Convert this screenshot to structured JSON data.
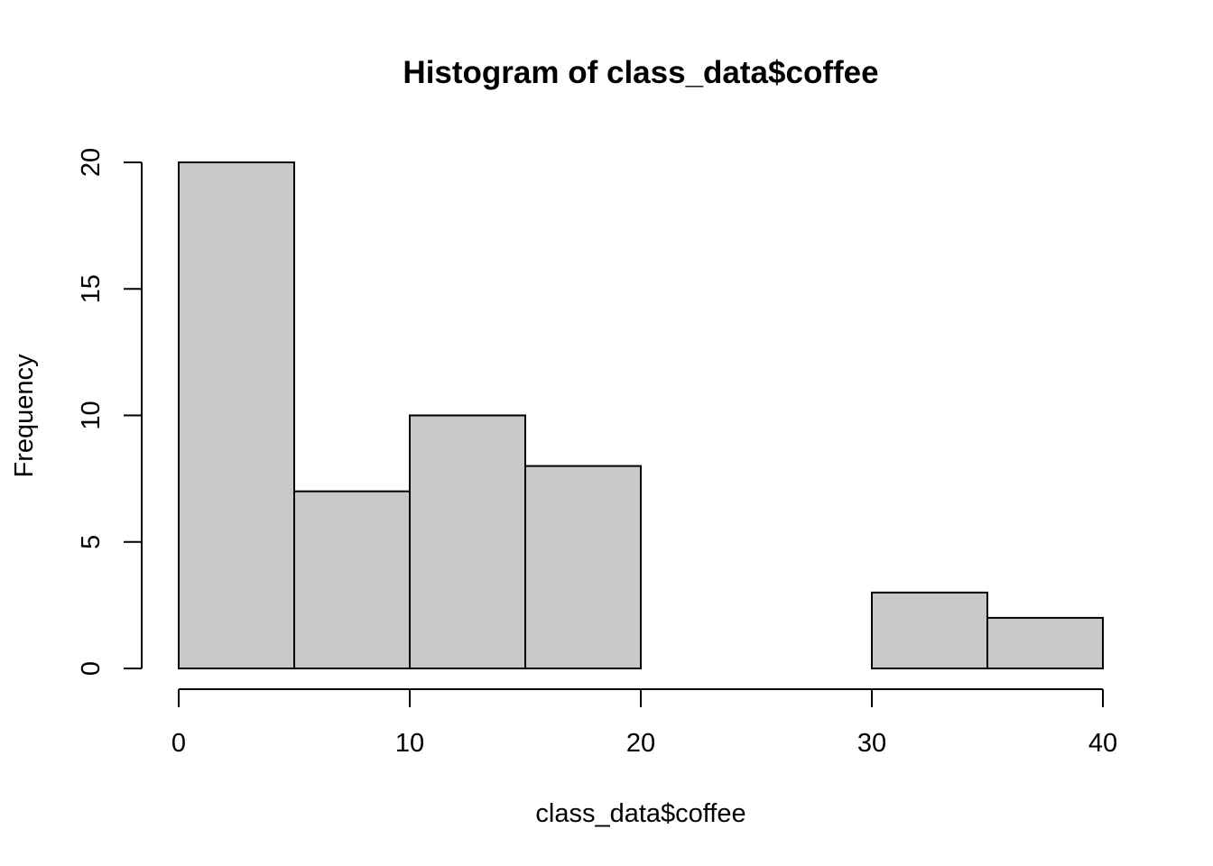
{
  "chart_data": {
    "type": "bar",
    "title": "Histogram of class_data$coffee",
    "xlabel": "class_data$coffee",
    "ylabel": "Frequency",
    "bins": [
      {
        "start": 0,
        "end": 5,
        "count": 20
      },
      {
        "start": 5,
        "end": 10,
        "count": 7
      },
      {
        "start": 10,
        "end": 15,
        "count": 10
      },
      {
        "start": 15,
        "end": 20,
        "count": 8
      },
      {
        "start": 20,
        "end": 25,
        "count": 0
      },
      {
        "start": 25,
        "end": 30,
        "count": 0
      },
      {
        "start": 30,
        "end": 35,
        "count": 3
      },
      {
        "start": 35,
        "end": 40,
        "count": 2
      }
    ],
    "xlim": [
      0,
      40
    ],
    "ylim": [
      0,
      20
    ],
    "x_ticks": [
      0,
      10,
      20,
      30,
      40
    ],
    "y_ticks": [
      0,
      5,
      10,
      15,
      20
    ],
    "bar_fill": "#c8c8c8",
    "bar_stroke": "#000000",
    "grid": false
  }
}
